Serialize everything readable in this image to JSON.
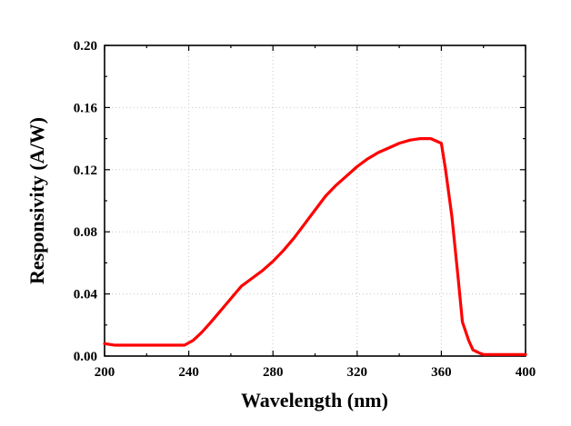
{
  "chart_data": {
    "type": "line",
    "title": "",
    "xlabel": "Wavelength (nm)",
    "ylabel": "Responsivity (A/W)",
    "xlim": [
      200,
      400
    ],
    "ylim": [
      0,
      0.2
    ],
    "xticks": [
      200,
      240,
      280,
      320,
      360,
      400
    ],
    "yticks": [
      0.0,
      0.04,
      0.08,
      0.12,
      0.16,
      0.2
    ],
    "xtick_labels": [
      "200",
      "240",
      "280",
      "320",
      "360",
      "400"
    ],
    "ytick_labels": [
      "0.00",
      "0.04",
      "0.08",
      "0.12",
      "0.16",
      "0.20"
    ],
    "grid": true,
    "series": [
      {
        "name": "Responsivity",
        "color": "#ff0000",
        "x": [
          200,
          205,
          210,
          220,
          230,
          238,
          242,
          246,
          250,
          255,
          260,
          265,
          270,
          275,
          280,
          285,
          290,
          295,
          300,
          305,
          310,
          315,
          320,
          325,
          330,
          335,
          340,
          345,
          350,
          355,
          360,
          362,
          365,
          368,
          370,
          373,
          375,
          378,
          380,
          385,
          390,
          395,
          400
        ],
        "y": [
          0.008,
          0.007,
          0.007,
          0.007,
          0.007,
          0.007,
          0.01,
          0.015,
          0.021,
          0.029,
          0.037,
          0.045,
          0.05,
          0.055,
          0.061,
          0.068,
          0.076,
          0.085,
          0.094,
          0.103,
          0.11,
          0.116,
          0.122,
          0.127,
          0.131,
          0.134,
          0.137,
          0.139,
          0.14,
          0.14,
          0.137,
          0.12,
          0.09,
          0.05,
          0.022,
          0.01,
          0.004,
          0.002,
          0.001,
          0.001,
          0.001,
          0.001,
          0.001
        ]
      }
    ]
  }
}
